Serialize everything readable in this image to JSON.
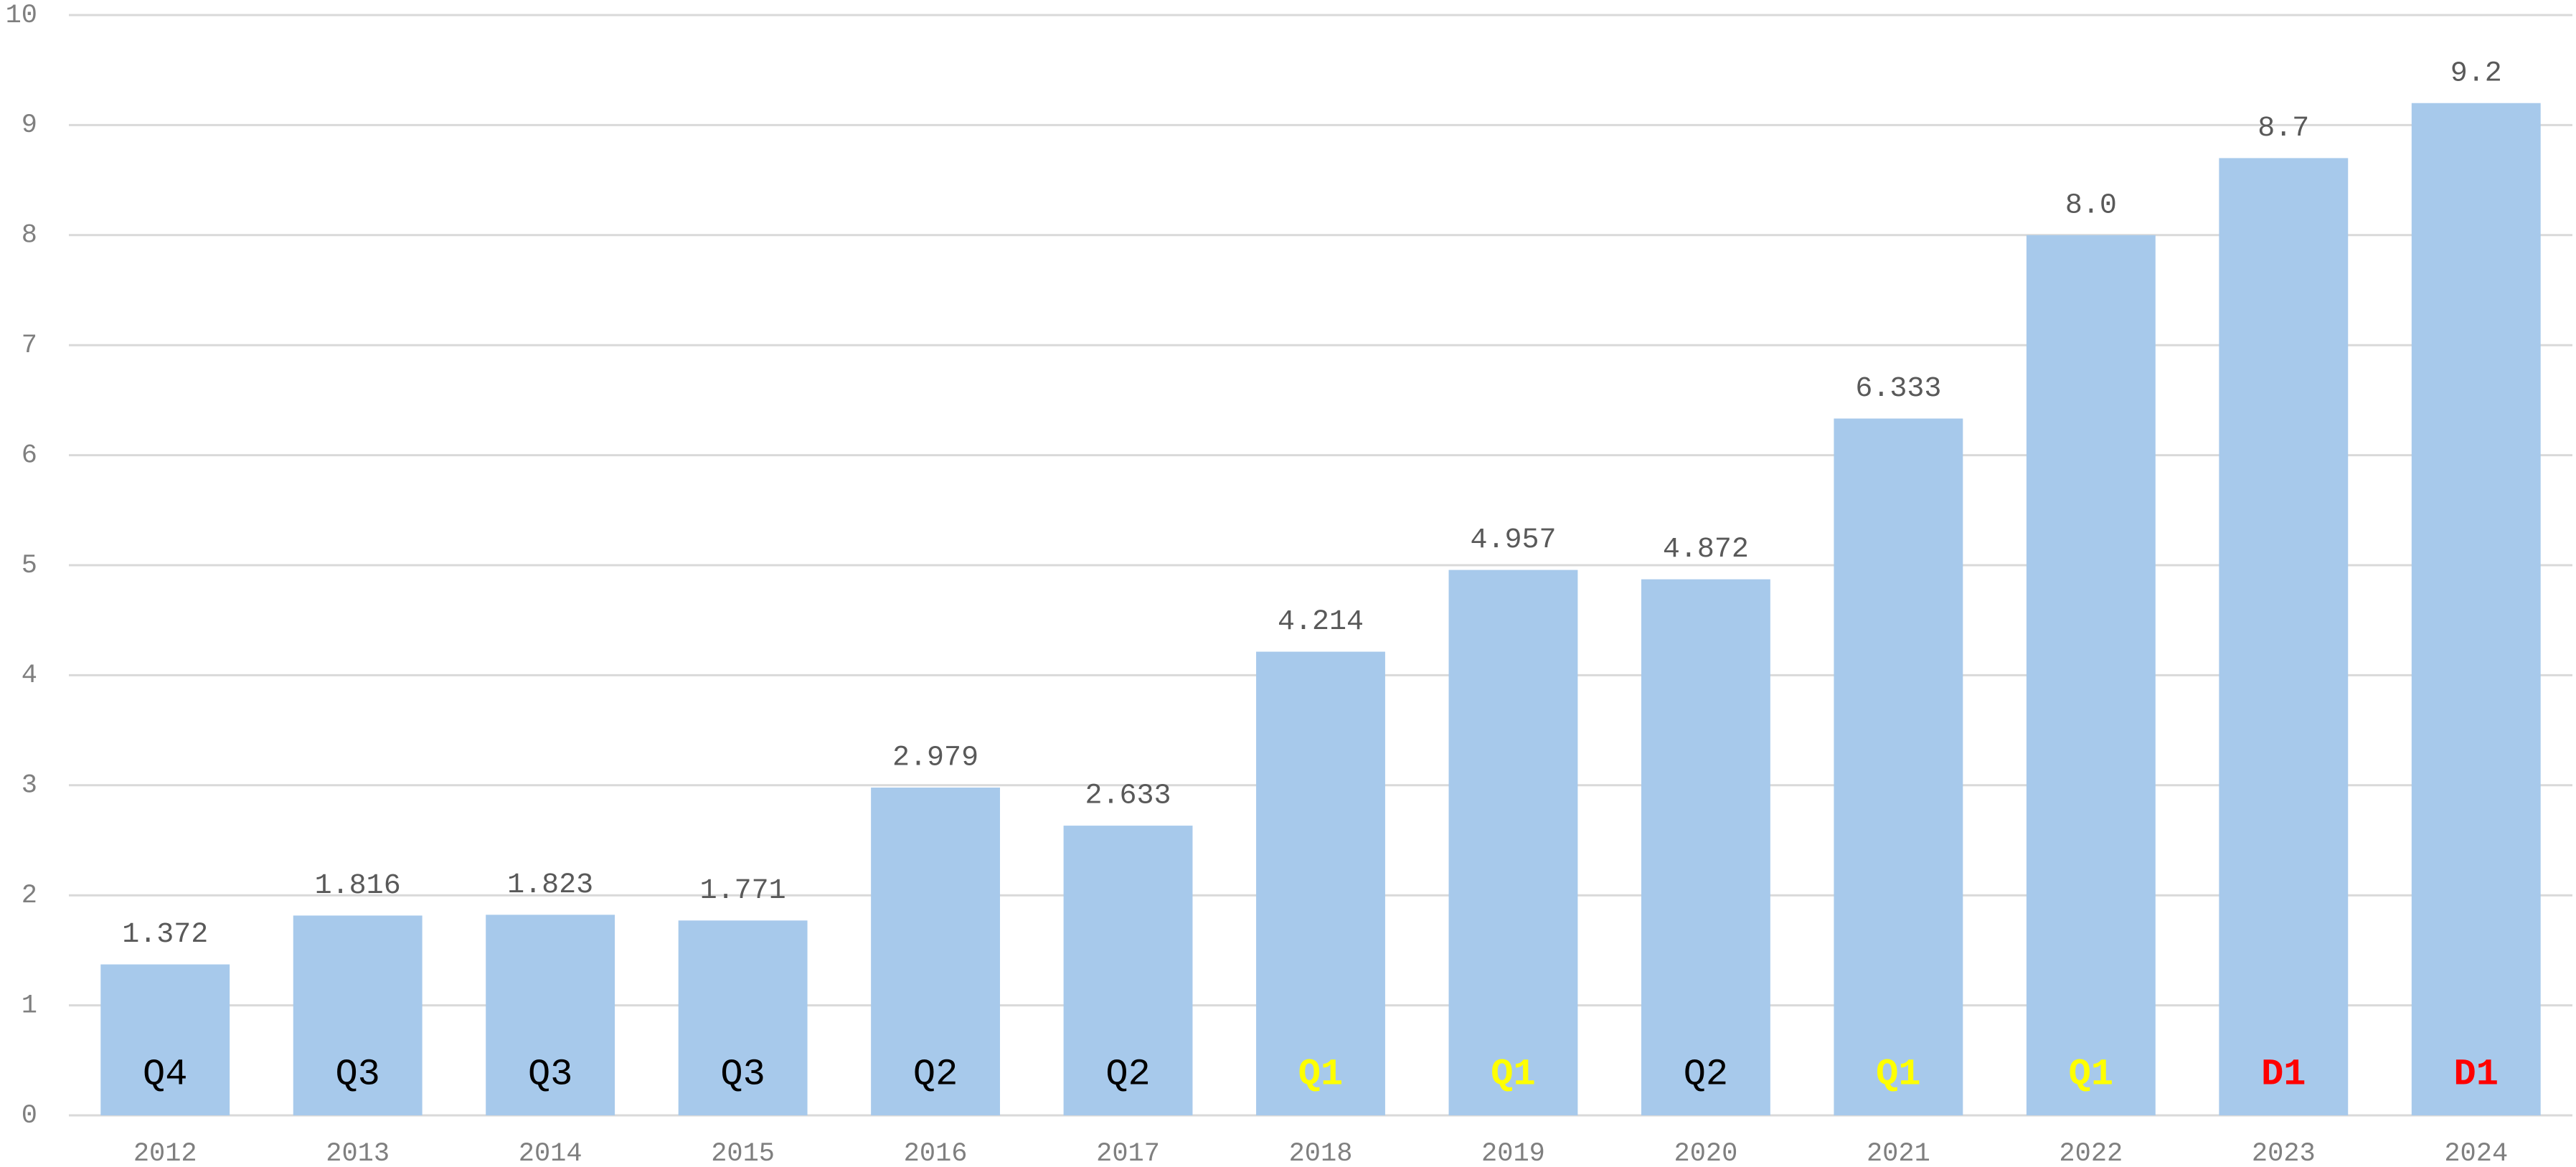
{
  "chart_data": {
    "type": "bar",
    "categories": [
      "2012",
      "2013",
      "2014",
      "2015",
      "2016",
      "2017",
      "2018",
      "2019",
      "2020",
      "2021",
      "2022",
      "2023",
      "2024"
    ],
    "values": [
      1.372,
      1.816,
      1.823,
      1.771,
      2.979,
      2.633,
      4.214,
      4.957,
      4.872,
      6.333,
      8,
      8.7,
      9.2
    ],
    "value_labels": [
      "1.372",
      "1.816",
      "1.823",
      "1.771",
      "2.979",
      "2.633",
      "4.214",
      "4.957",
      "4.872",
      "6.333",
      "8.0",
      "8.7",
      "9.2"
    ],
    "quartiles": [
      "Q4",
      "Q3",
      "Q3",
      "Q3",
      "Q2",
      "Q2",
      "Q1",
      "Q1",
      "Q2",
      "Q1",
      "Q1",
      "D1",
      "D1"
    ],
    "quartile_colors": [
      "#000000",
      "#000000",
      "#000000",
      "#000000",
      "#000000",
      "#000000",
      "#ffff00",
      "#ffff00",
      "#000000",
      "#ffff00",
      "#ffff00",
      "#ff0000",
      "#ff0000"
    ],
    "color": "#a7c9eb",
    "ylim": [
      0,
      10
    ],
    "yticks": [
      0,
      1,
      2,
      3,
      4,
      5,
      6,
      7,
      8,
      9,
      10
    ],
    "grid": true
  }
}
